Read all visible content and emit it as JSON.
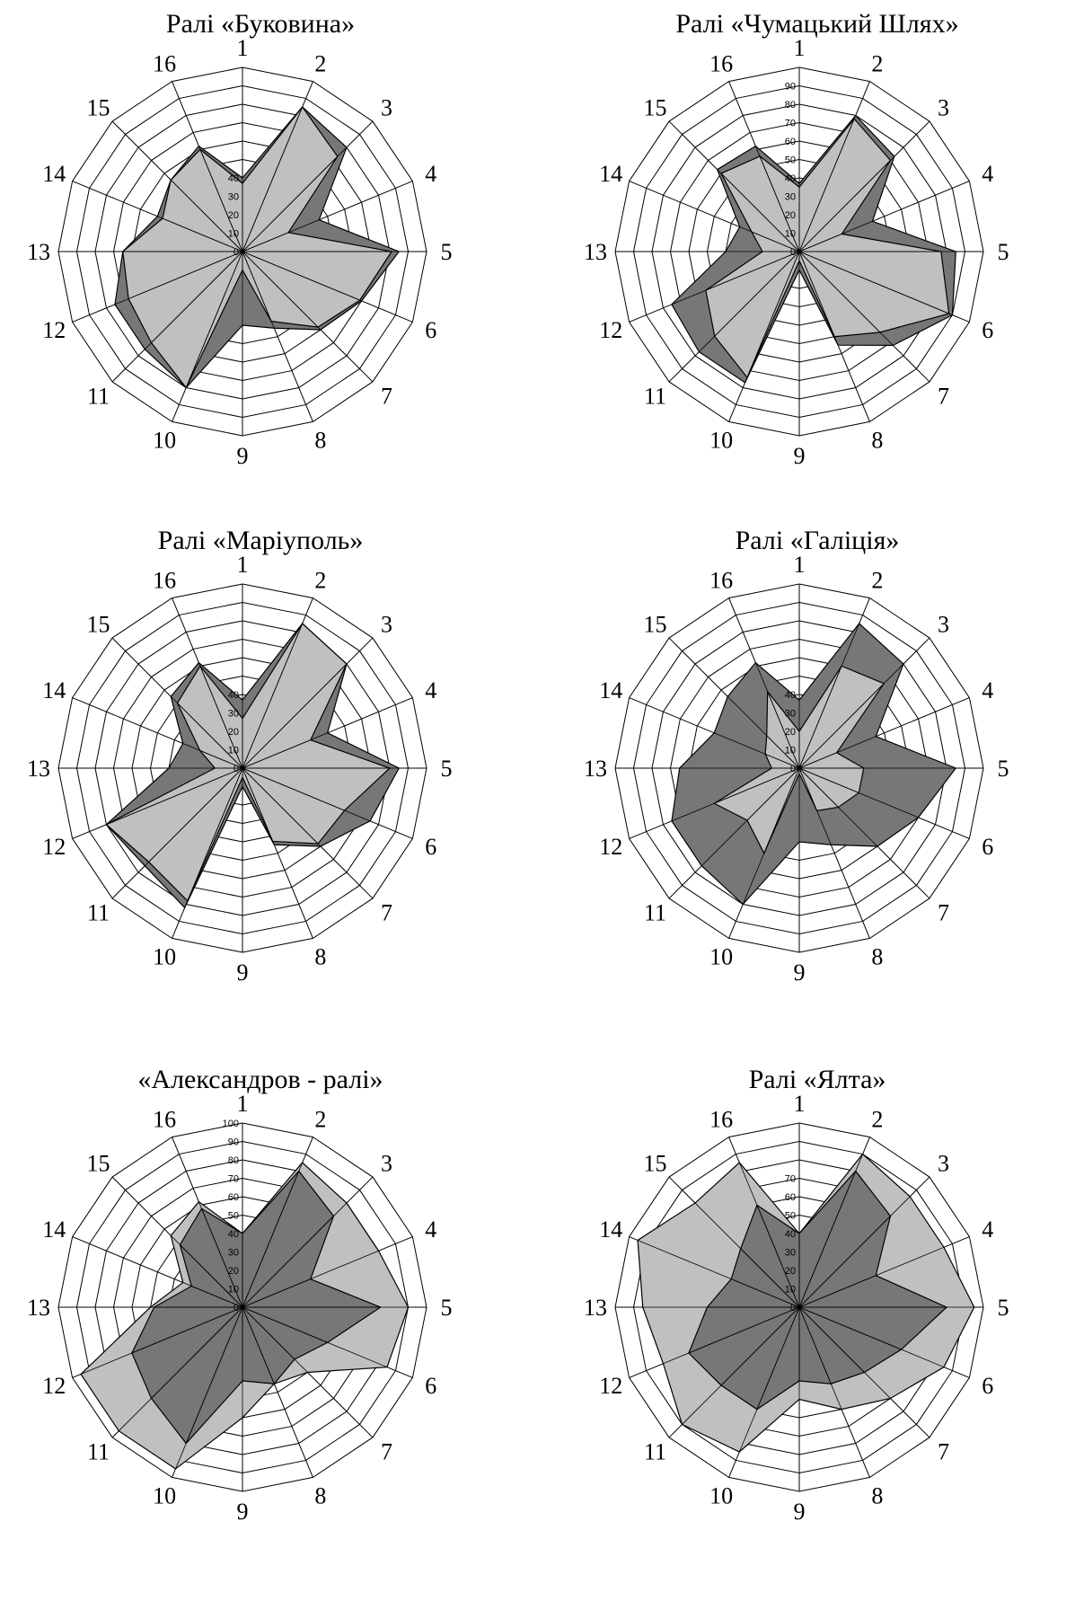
{
  "chart_data": [
    {
      "type": "radar",
      "title": "Ралі «Буковина»",
      "categories": [
        "1",
        "2",
        "3",
        "4",
        "5",
        "6",
        "7",
        "8",
        "9",
        "10",
        "11",
        "12",
        "13",
        "14",
        "15",
        "16"
      ],
      "rlim": [
        0,
        100
      ],
      "tick_labels": [
        "0",
        "10",
        "20",
        "30",
        "40"
      ],
      "series": [
        {
          "values": [
            40,
            85,
            80,
            45,
            85,
            70,
            60,
            45,
            40,
            80,
            75,
            75,
            65,
            50,
            55,
            62
          ],
          "color": "#777777"
        },
        {
          "values": [
            37,
            85,
            73,
            27,
            81,
            69,
            58,
            41,
            10,
            80,
            70,
            67,
            65,
            47,
            55,
            60
          ],
          "color": "#c0c0c0"
        }
      ]
    },
    {
      "type": "radar",
      "title": "Ралі «Чумацький Шлях»",
      "categories": [
        "1",
        "2",
        "3",
        "4",
        "5",
        "6",
        "7",
        "8",
        "9",
        "10",
        "11",
        "12",
        "13",
        "14",
        "15",
        "16"
      ],
      "rlim": [
        0,
        100
      ],
      "tick_labels": [
        "0",
        "10",
        "20",
        "30",
        "40",
        "50",
        "60",
        "70",
        "80",
        "90"
      ],
      "series": [
        {
          "values": [
            37,
            80,
            73,
            43,
            85,
            90,
            72,
            55,
            10,
            77,
            77,
            75,
            40,
            35,
            63,
            62
          ],
          "color": "#777777"
        },
        {
          "values": [
            35,
            78,
            70,
            25,
            77,
            88,
            62,
            50,
            5,
            74,
            65,
            55,
            20,
            28,
            60,
            56
          ],
          "color": "#c0c0c0"
        }
      ]
    },
    {
      "type": "radar",
      "title": "Ралі «Маріуполь»",
      "categories": [
        "1",
        "2",
        "3",
        "4",
        "5",
        "6",
        "7",
        "8",
        "9",
        "10",
        "11",
        "12",
        "13",
        "14",
        "15",
        "16"
      ],
      "rlim": [
        0,
        100
      ],
      "tick_labels": [
        "0",
        "10",
        "20",
        "30",
        "40"
      ],
      "series": [
        {
          "values": [
            37,
            85,
            80,
            50,
            85,
            75,
            60,
            45,
            10,
            82,
            75,
            80,
            40,
            35,
            55,
            62
          ],
          "color": "#777777"
        },
        {
          "values": [
            27,
            85,
            80,
            40,
            80,
            60,
            58,
            43,
            5,
            78,
            72,
            80,
            15,
            25,
            50,
            60
          ],
          "color": "#c0c0c0"
        }
      ]
    },
    {
      "type": "radar",
      "title": "Ралі «Галіція»",
      "categories": [
        "1",
        "2",
        "3",
        "4",
        "5",
        "6",
        "7",
        "8",
        "9",
        "10",
        "11",
        "12",
        "13",
        "14",
        "15",
        "16"
      ],
      "rlim": [
        0,
        100
      ],
      "tick_labels": [
        "0",
        "10",
        "20",
        "30",
        "40"
      ],
      "series": [
        {
          "values": [
            37,
            85,
            80,
            45,
            85,
            70,
            60,
            45,
            40,
            80,
            75,
            75,
            65,
            50,
            55,
            62
          ],
          "color": "#777777"
        },
        {
          "values": [
            20,
            60,
            65,
            22,
            35,
            35,
            30,
            25,
            3,
            50,
            40,
            50,
            15,
            20,
            25,
            45
          ],
          "color": "#c0c0c0"
        }
      ]
    },
    {
      "type": "radar",
      "title": "«Александров - ралі»",
      "categories": [
        "1",
        "2",
        "3",
        "4",
        "5",
        "6",
        "7",
        "8",
        "9",
        "10",
        "11",
        "12",
        "13",
        "14",
        "15",
        "16"
      ],
      "rlim": [
        0,
        100
      ],
      "tick_labels": [
        "0",
        "10",
        "20",
        "30",
        "40",
        "50",
        "60",
        "70",
        "80",
        "90",
        "100"
      ],
      "series": [
        {
          "values": [
            40,
            85,
            80,
            80,
            90,
            85,
            50,
            45,
            60,
            95,
            95,
            95,
            50,
            35,
            55,
            62
          ],
          "color": "#c0c0c0"
        },
        {
          "values": [
            40,
            80,
            70,
            40,
            75,
            50,
            40,
            45,
            40,
            80,
            70,
            65,
            48,
            30,
            48,
            58
          ],
          "color": "#777777"
        }
      ]
    },
    {
      "type": "radar",
      "title": "Ралі «Ялта»",
      "categories": [
        "1",
        "2",
        "3",
        "4",
        "5",
        "6",
        "7",
        "8",
        "9",
        "10",
        "11",
        "12",
        "13",
        "14",
        "15",
        "16"
      ],
      "rlim": [
        0,
        100
      ],
      "tick_labels": [
        "0",
        "10",
        "20",
        "30",
        "40",
        "50",
        "60",
        "70"
      ],
      "series": [
        {
          "values": [
            40,
            90,
            85,
            85,
            95,
            85,
            70,
            60,
            50,
            85,
            90,
            80,
            85,
            95,
            80,
            85
          ],
          "color": "#c0c0c0"
        },
        {
          "values": [
            40,
            80,
            70,
            45,
            80,
            60,
            50,
            45,
            40,
            60,
            60,
            65,
            50,
            40,
            45,
            60
          ],
          "color": "#777777"
        }
      ]
    }
  ]
}
